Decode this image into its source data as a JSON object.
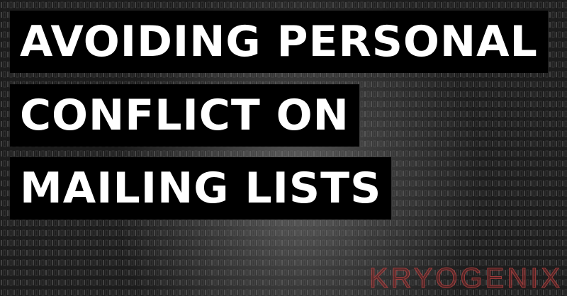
{
  "title_lines": [
    "AVOIDING PERSONAL",
    "CONFLICT ON",
    "MAILING LISTS"
  ],
  "brand": "KRYOGENIX"
}
